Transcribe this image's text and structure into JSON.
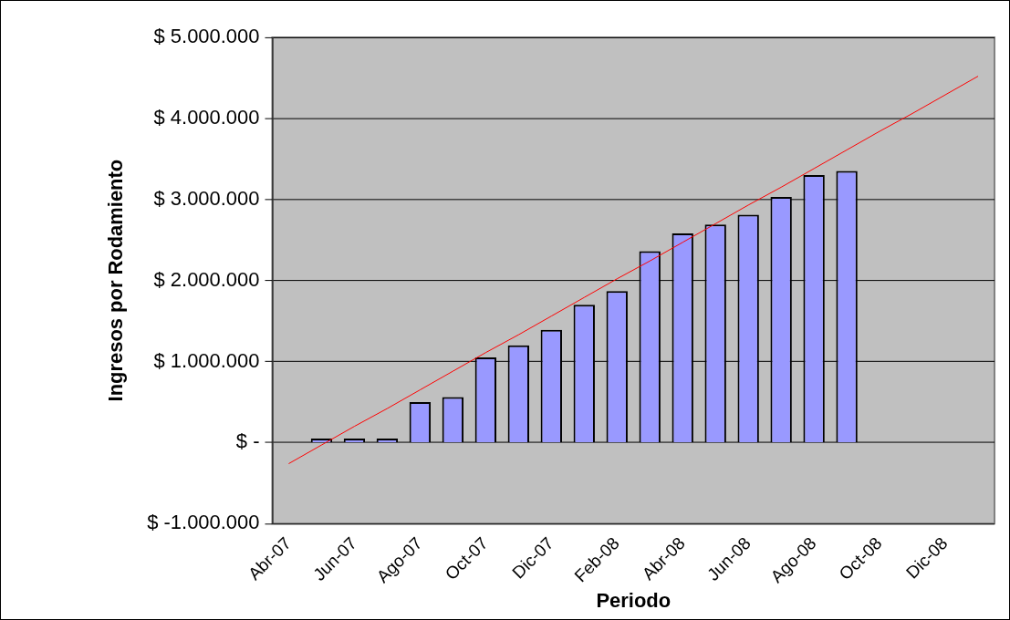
{
  "chart_data": {
    "type": "bar",
    "xlabel": "Periodo",
    "ylabel": "Ingresos por Rodamiento",
    "categories": [
      "Abr-07",
      null,
      "Jun-07",
      null,
      "Ago-07",
      null,
      "Oct-07",
      null,
      "Dic-07",
      null,
      "Feb-08",
      null,
      "Abr-08",
      null,
      "Jun-08",
      null,
      "Ago-08",
      null,
      "Oct-08",
      null,
      "Dic-08",
      null
    ],
    "series": [
      {
        "color": "#9999ff",
        "values": [
          null,
          50000,
          50000,
          50000,
          500000,
          560000,
          1050000,
          1200000,
          1390000,
          1700000,
          1870000,
          2360000,
          2580000,
          2690000,
          2810000,
          3030000,
          3300000,
          3350000,
          null,
          null,
          null,
          null
        ]
      },
      {
        "type": "line",
        "color": "#ff0000",
        "values": [
          -260000,
          -30000,
          200000,
          420000,
          650000,
          880000,
          1110000,
          1330000,
          1560000,
          1790000,
          2020000,
          2240000,
          2470000,
          2700000,
          2930000,
          3150000,
          3380000,
          3610000,
          3840000,
          4060000,
          4290000,
          4520000
        ]
      }
    ],
    "ylim": [
      -1000000,
      5000000
    ],
    "yticks": [
      {
        "value": -1000000,
        "label": "$ -1.000.000"
      },
      {
        "value": 0,
        "label": "$ -"
      },
      {
        "value": 1000000,
        "label": "$ 1.000.000"
      },
      {
        "value": 2000000,
        "label": "$ 2.000.000"
      },
      {
        "value": 3000000,
        "label": "$ 3.000.000"
      },
      {
        "value": 4000000,
        "label": "$ 4.000.000"
      },
      {
        "value": 5000000,
        "label": "$ 5.000.000"
      }
    ],
    "grid": "y",
    "legend": false,
    "marker": "none",
    "line_style": "solid"
  }
}
